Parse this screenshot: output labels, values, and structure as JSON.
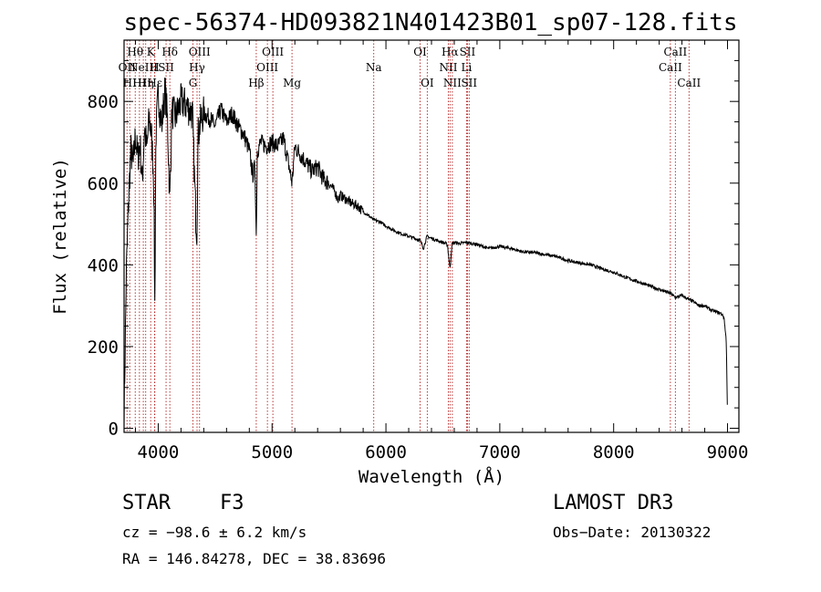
{
  "chart_data": {
    "type": "line",
    "title": "spec-56374-HD093821N401423B01_sp07-128.fits",
    "xlabel": "Wavelength (Å)",
    "ylabel": "Flux (relative)",
    "xlim": [
      3700,
      9100
    ],
    "ylim": [
      -10,
      950
    ],
    "xticks": [
      4000,
      5000,
      6000,
      7000,
      8000,
      9000
    ],
    "xtick_labels": [
      "4000",
      "5000",
      "6000",
      "7000",
      "8000",
      "9000"
    ],
    "yticks": [
      0,
      200,
      400,
      600,
      800
    ],
    "ytick_labels": [
      "0",
      "200",
      "400",
      "600",
      "800"
    ],
    "grid": false,
    "series": [
      {
        "name": "flux",
        "x": [
          3700,
          3720,
          3740,
          3760,
          3780,
          3800,
          3820,
          3840,
          3860,
          3880,
          3900,
          3920,
          3940,
          3960,
          3970,
          3980,
          4000,
          4030,
          4060,
          4080,
          4102,
          4120,
          4150,
          4200,
          4250,
          4300,
          4330,
          4340,
          4350,
          4380,
          4400,
          4450,
          4500,
          4550,
          4600,
          4650,
          4700,
          4750,
          4800,
          4830,
          4850,
          4861,
          4870,
          4900,
          4950,
          5000,
          5050,
          5100,
          5150,
          5175,
          5200,
          5250,
          5300,
          5350,
          5400,
          5450,
          5500,
          5550,
          5580,
          5600,
          5650,
          5700,
          5750,
          5800,
          5850,
          5893,
          5950,
          6000,
          6100,
          6200,
          6300,
          6330,
          6360,
          6400,
          6450,
          6500,
          6540,
          6563,
          6580,
          6600,
          6650,
          6700,
          6800,
          6900,
          7000,
          7100,
          7200,
          7300,
          7400,
          7500,
          7600,
          7700,
          7800,
          7900,
          8000,
          8100,
          8200,
          8300,
          8400,
          8500,
          8542,
          8600,
          8662,
          8700,
          8750,
          8800,
          8850,
          8900,
          8950,
          8970,
          8990,
          9000
        ],
        "y": [
          20,
          380,
          560,
          680,
          640,
          720,
          660,
          700,
          600,
          740,
          680,
          760,
          720,
          620,
          300,
          720,
          820,
          740,
          830,
          760,
          560,
          780,
          760,
          800,
          790,
          770,
          520,
          480,
          720,
          760,
          770,
          760,
          740,
          780,
          750,
          770,
          740,
          720,
          680,
          620,
          640,
          470,
          680,
          700,
          690,
          700,
          690,
          710,
          640,
          600,
          690,
          670,
          650,
          630,
          640,
          610,
          600,
          580,
          560,
          570,
          560,
          550,
          545,
          530,
          520,
          510,
          505,
          495,
          480,
          470,
          460,
          440,
          470,
          465,
          460,
          455,
          450,
          390,
          450,
          455,
          452,
          455,
          450,
          440,
          445,
          440,
          432,
          430,
          425,
          420,
          410,
          405,
          400,
          390,
          382,
          370,
          360,
          350,
          340,
          330,
          320,
          325,
          315,
          310,
          300,
          300,
          290,
          285,
          280,
          270,
          210,
          20
        ]
      }
    ],
    "annotations": [
      {
        "wave": 3726,
        "labels": [
          "OII"
        ],
        "row": 2
      },
      {
        "wave": 3750,
        "labels": [
          "HI"
        ],
        "row": 3
      },
      {
        "wave": 3798,
        "labels": [
          "Hθ"
        ],
        "row": 1
      },
      {
        "wave": 3835,
        "labels": [
          "HI"
        ],
        "row": 3
      },
      {
        "wave": 3869,
        "labels": [
          "NeIII"
        ],
        "row": 2
      },
      {
        "wave": 3890,
        "labels": [
          "Hη"
        ],
        "row": 3
      },
      {
        "wave": 3934,
        "labels": [
          "K"
        ],
        "row": 1
      },
      {
        "wave": 3968,
        "labels": [
          "H"
        ],
        "row": 2
      },
      {
        "wave": 3970,
        "labels": [
          "Hε"
        ],
        "row": 3
      },
      {
        "wave": 4069,
        "labels": [
          "SII"
        ],
        "row": 2
      },
      {
        "wave": 4102,
        "labels": [
          "Hδ"
        ],
        "row": 1
      },
      {
        "wave": 4305,
        "labels": [
          "G"
        ],
        "row": 3
      },
      {
        "wave": 4341,
        "labels": [
          "Hγ"
        ],
        "row": 2
      },
      {
        "wave": 4363,
        "labels": [
          "OIII"
        ],
        "row": 1
      },
      {
        "wave": 4861,
        "labels": [
          "Hβ"
        ],
        "row": 3
      },
      {
        "wave": 4959,
        "labels": [
          "OIII"
        ],
        "row": 2
      },
      {
        "wave": 5007,
        "labels": [
          "OIII"
        ],
        "row": 1
      },
      {
        "wave": 5175,
        "labels": [
          "Mg"
        ],
        "row": 3
      },
      {
        "wave": 5893,
        "labels": [
          "Na"
        ],
        "row": 2
      },
      {
        "wave": 6300,
        "labels": [
          "OI"
        ],
        "row": 1
      },
      {
        "wave": 6363,
        "labels": [
          "OI"
        ],
        "row": 3
      },
      {
        "wave": 6548,
        "labels": [
          "NII"
        ],
        "row": 2
      },
      {
        "wave": 6563,
        "labels": [
          "Hα"
        ],
        "row": 1
      },
      {
        "wave": 6583,
        "labels": [
          "NII"
        ],
        "row": 3
      },
      {
        "wave": 6708,
        "labels": [
          "Li"
        ],
        "row": 2
      },
      {
        "wave": 6716,
        "labels": [
          "SII"
        ],
        "row": 1
      },
      {
        "wave": 6731,
        "labels": [
          "SII"
        ],
        "row": 3
      },
      {
        "wave": 8498,
        "labels": [
          "CaII"
        ],
        "row": 2
      },
      {
        "wave": 8542,
        "labels": [
          "CaII"
        ],
        "row": 1
      },
      {
        "wave": 8662,
        "labels": [
          "CaII"
        ],
        "row": 3
      }
    ],
    "line_color": "#b22222"
  },
  "info": {
    "class": "STAR",
    "subclass": "F3",
    "survey": "LAMOST DR3",
    "cz": "cz = −98.6 ± 6.2 km/s",
    "obsdate": "Obs−Date: 20130322",
    "radec": "RA = 146.84278, DEC =  38.83696"
  }
}
